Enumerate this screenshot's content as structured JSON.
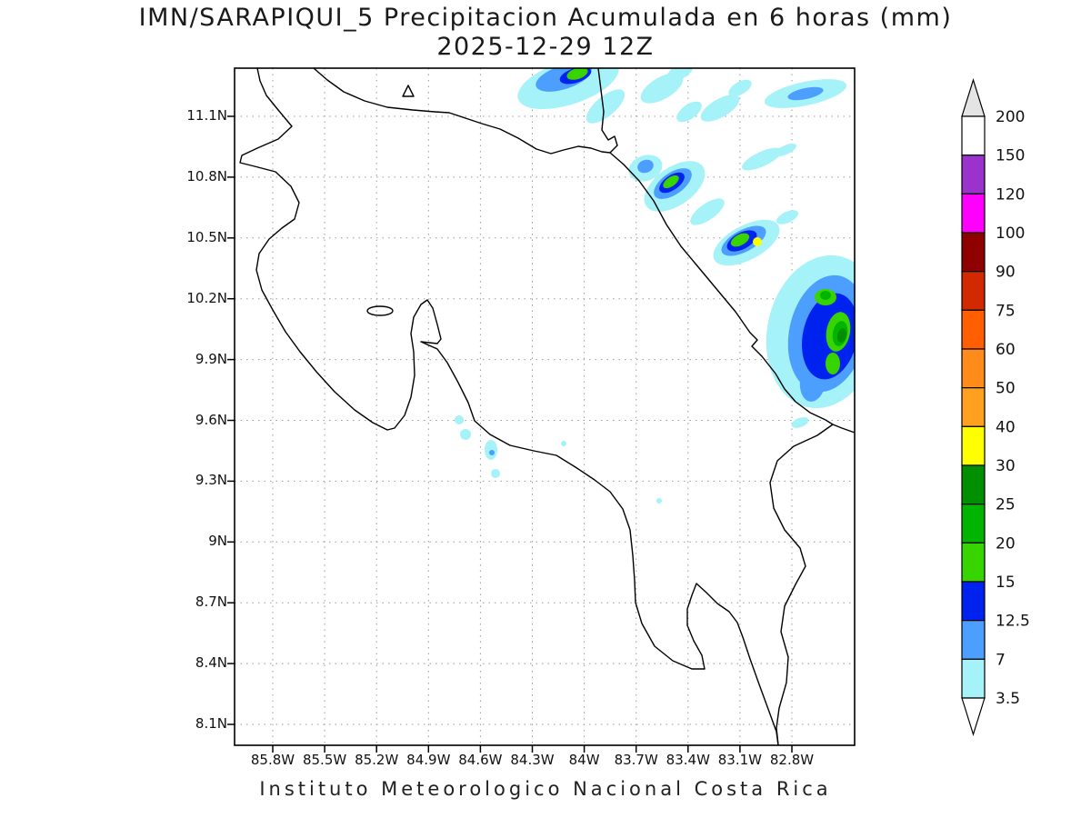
{
  "title": {
    "line1": "IMN/SARAPIQUI_5 Precipitacion Acumulada en 6 horas (mm)",
    "line2": "2025-12-29 12Z"
  },
  "footer": "Instituto Meteorologico Nacional Costa Rica",
  "map": {
    "lat_ticks": [
      "11.1N",
      "10.8N",
      "10.5N",
      "10.2N",
      "9.9N",
      "9.6N",
      "9.3N",
      "9N",
      "8.7N",
      "8.4N",
      "8.1N"
    ],
    "lon_ticks": [
      "85.8W",
      "85.5W",
      "85.2W",
      "84.9W",
      "84.6W",
      "84.3W",
      "84W",
      "83.7W",
      "83.4W",
      "83.1W",
      "82.8W"
    ]
  },
  "colorbar": {
    "boundaries": [
      "200",
      "150",
      "120",
      "100",
      "90",
      "75",
      "60",
      "50",
      "40",
      "30",
      "25",
      "20",
      "15",
      "12.5",
      "7",
      "3.5"
    ],
    "segment_colors": [
      "#ffffff",
      "#9933cc",
      "#ff00ff",
      "#8f0000",
      "#d22900",
      "#ff5f00",
      "#ff8c1a",
      "#ffa01e",
      "#ffff00",
      "#008f00",
      "#00b400",
      "#38d400",
      "#0022ee",
      "#4d9fff",
      "#a5f2f9"
    ],
    "above_color": "#e4e4e4",
    "below_color": "#ffffff"
  },
  "palette": {
    "rain_3_5": "#a5f2f9",
    "rain_7": "#4d9fff",
    "rain_12_5": "#0022ee",
    "rain_15": "#38d400",
    "rain_20": "#00b400",
    "rain_25": "#008f00",
    "rain_30": "#ffff00",
    "coastline": "#000000",
    "grid": "#9a9a9a"
  }
}
